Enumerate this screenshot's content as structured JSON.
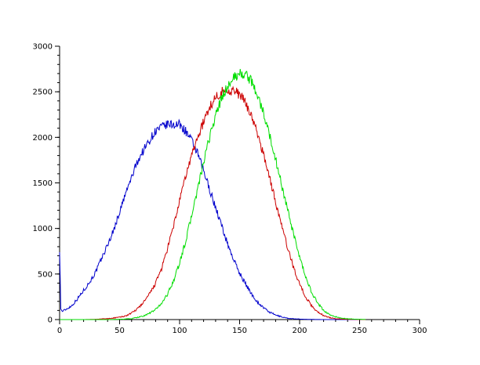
{
  "chart_data": {
    "type": "line",
    "title": "",
    "xlabel": "",
    "ylabel": "",
    "xlim": [
      0,
      300
    ],
    "ylim": [
      0,
      3000
    ],
    "x_ticks": [
      0,
      50,
      100,
      150,
      200,
      250,
      300
    ],
    "y_ticks": [
      0,
      500,
      1000,
      1500,
      2000,
      2500,
      3000
    ],
    "x_tick_labels": [
      "0",
      "50",
      "100",
      "150",
      "200",
      "250",
      "300"
    ],
    "y_tick_labels": [
      "0",
      "500",
      "1000",
      "1500",
      "2000",
      "2500",
      "3000"
    ],
    "grid": false,
    "legend": "none",
    "series": [
      {
        "color": "#0000cc",
        "x": [
          0,
          1,
          2,
          5,
          10,
          15,
          20,
          25,
          30,
          35,
          40,
          45,
          50,
          55,
          60,
          65,
          70,
          75,
          80,
          85,
          90,
          95,
          100,
          105,
          110,
          115,
          120,
          125,
          130,
          135,
          140,
          145,
          150,
          155,
          160,
          165,
          170,
          175,
          180,
          185,
          190,
          195,
          200,
          205,
          210,
          215,
          220,
          225,
          230,
          240,
          250,
          255
        ],
        "y": [
          770,
          120,
          90,
          110,
          150,
          230,
          320,
          410,
          520,
          670,
          820,
          980,
          1180,
          1380,
          1560,
          1740,
          1860,
          1970,
          2070,
          2110,
          2140,
          2140,
          2140,
          2070,
          1960,
          1820,
          1630,
          1430,
          1230,
          1030,
          830,
          660,
          510,
          390,
          280,
          190,
          130,
          80,
          50,
          30,
          15,
          8,
          5,
          3,
          2,
          1,
          0,
          0,
          0,
          0,
          0,
          0
        ]
      },
      {
        "color": "#cc0000",
        "x": [
          0,
          20,
          30,
          40,
          50,
          55,
          60,
          65,
          70,
          75,
          80,
          85,
          90,
          95,
          100,
          105,
          110,
          115,
          120,
          125,
          130,
          135,
          140,
          145,
          150,
          155,
          160,
          165,
          170,
          175,
          180,
          185,
          190,
          195,
          200,
          205,
          210,
          215,
          220,
          225,
          230,
          235,
          240,
          245,
          250,
          255
        ],
        "y": [
          0,
          0,
          3,
          10,
          25,
          40,
          70,
          120,
          190,
          280,
          400,
          560,
          780,
          1030,
          1300,
          1570,
          1800,
          2000,
          2170,
          2330,
          2440,
          2500,
          2520,
          2510,
          2470,
          2380,
          2230,
          2030,
          1810,
          1560,
          1290,
          1030,
          790,
          570,
          390,
          250,
          150,
          85,
          45,
          22,
          10,
          5,
          3,
          2,
          1,
          0
        ]
      },
      {
        "color": "#00dd00",
        "x": [
          0,
          40,
          50,
          60,
          70,
          75,
          80,
          85,
          90,
          95,
          100,
          105,
          110,
          115,
          120,
          125,
          130,
          135,
          140,
          145,
          150,
          155,
          160,
          165,
          170,
          175,
          180,
          185,
          190,
          195,
          200,
          205,
          210,
          215,
          220,
          225,
          230,
          235,
          240,
          245,
          250,
          255
        ],
        "y": [
          0,
          0,
          3,
          10,
          40,
          70,
          110,
          180,
          280,
          430,
          620,
          860,
          1140,
          1430,
          1720,
          2000,
          2240,
          2430,
          2560,
          2650,
          2700,
          2690,
          2610,
          2460,
          2260,
          2020,
          1760,
          1480,
          1200,
          930,
          680,
          470,
          300,
          180,
          100,
          55,
          30,
          15,
          8,
          5,
          3,
          2
        ]
      }
    ]
  }
}
